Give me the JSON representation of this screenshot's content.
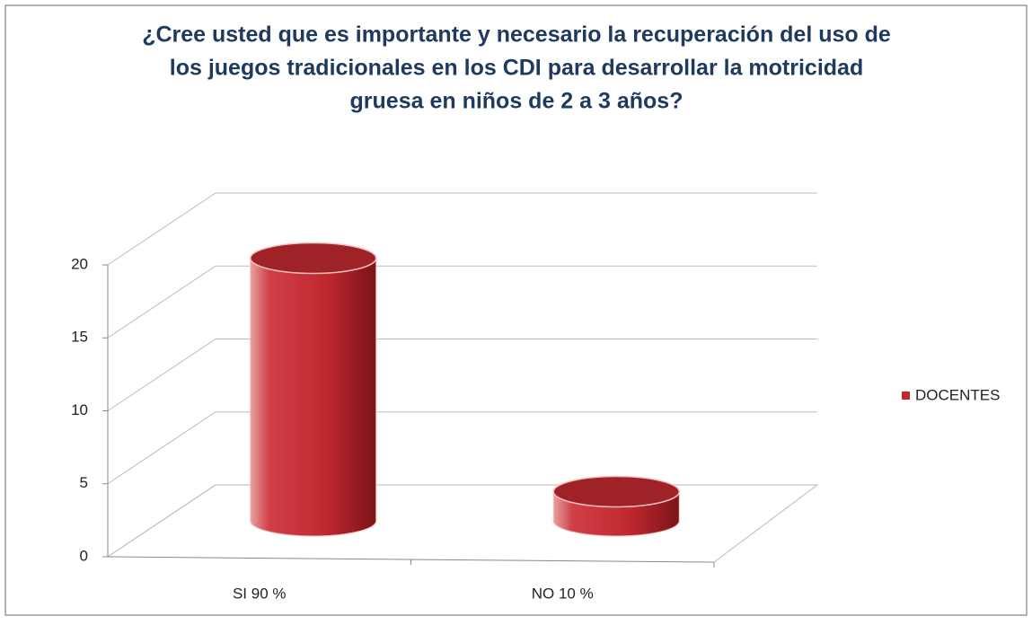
{
  "chart_data": {
    "type": "bar3d-cylinder",
    "title": [
      "¿Cree usted que es importante y necesario la recuperación del uso de",
      "los juegos tradicionales en los CDI para desarrollar la motricidad",
      "gruesa en niños de 2 a 3 años?"
    ],
    "categories": [
      "SI 90 %",
      "NO 10 %"
    ],
    "series": [
      {
        "name": "DOCENTES",
        "color": "#c0282e",
        "values": [
          18,
          2
        ]
      }
    ],
    "ylim": [
      0,
      20
    ],
    "yticks": [
      0,
      5,
      10,
      15,
      20
    ],
    "grid": true,
    "legend": "right"
  }
}
